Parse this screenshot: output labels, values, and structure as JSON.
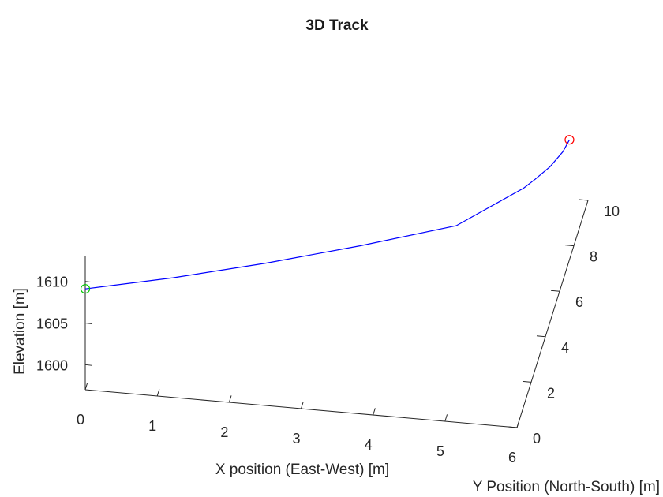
{
  "chart_data": {
    "type": "line",
    "projection": "3d",
    "title": "3D Track",
    "xlabel": "X position (East-West) [m]",
    "ylabel": "Y Position (North-South) [m]",
    "zlabel": "Elevation [m]",
    "xlim": [
      0,
      6
    ],
    "ylim": [
      0,
      10
    ],
    "zlim": [
      1597,
      1613
    ],
    "x_ticks": [
      "0",
      "1",
      "2",
      "3",
      "4",
      "5",
      "6"
    ],
    "y_ticks": [
      "0",
      "2",
      "4",
      "6",
      "8",
      "10"
    ],
    "z_ticks": [
      "1600",
      "1605",
      "1610"
    ],
    "grid": false,
    "series": [
      {
        "color": "#0000ff",
        "points": [
          {
            "x": 0.0,
            "y": 0.0,
            "z": 1609.1
          },
          {
            "x": 1.2,
            "y": 0.2,
            "z": 1610.8
          },
          {
            "x": 2.4,
            "y": 1.1,
            "z": 1611.0
          },
          {
            "x": 3.6,
            "y": 2.2,
            "z": 1611.0
          },
          {
            "x": 4.8,
            "y": 3.6,
            "z": 1610.5
          },
          {
            "x": 5.5,
            "y": 6.0,
            "z": 1609.0
          },
          {
            "x": 5.6,
            "y": 6.6,
            "z": 1608.5
          },
          {
            "x": 5.75,
            "y": 7.2,
            "z": 1608.5
          },
          {
            "x": 5.85,
            "y": 8.0,
            "z": 1608.2
          },
          {
            "x": 5.88,
            "y": 8.6,
            "z": 1608.0
          }
        ]
      }
    ],
    "markers": [
      {
        "kind": "start",
        "shape": "circle",
        "color": "#00cc00",
        "x": 0.0,
        "y": 0.0,
        "z": 1609.1
      },
      {
        "kind": "end",
        "shape": "circle",
        "color": "#ff0000",
        "x": 5.88,
        "y": 8.6,
        "z": 1608.0
      }
    ]
  }
}
